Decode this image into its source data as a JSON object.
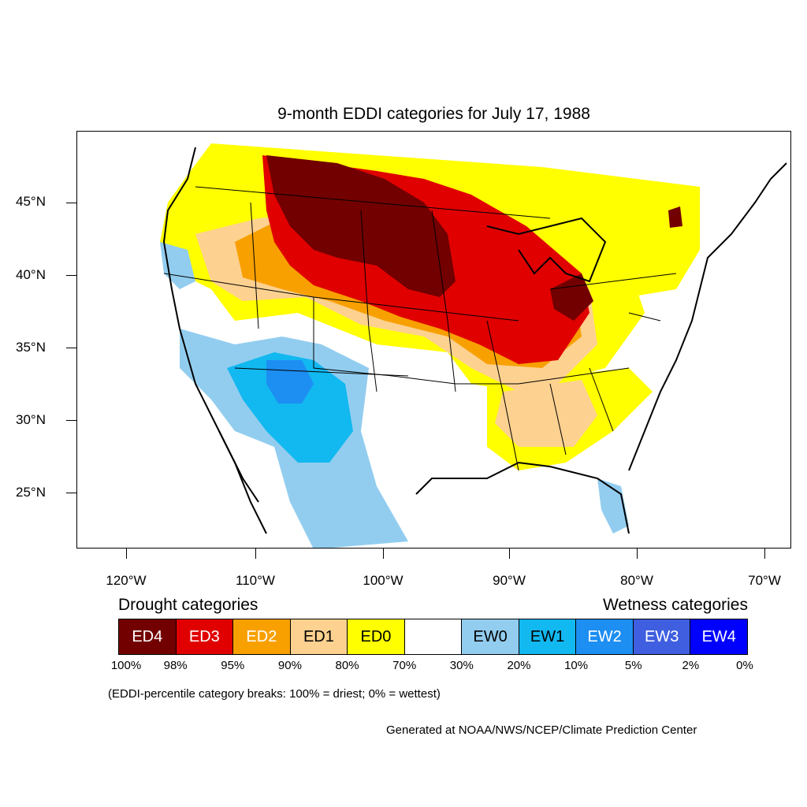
{
  "title": "9-month EDDI categories for July 17, 1988",
  "map": {
    "lat_labels": [
      "45°N",
      "40°N",
      "35°N",
      "30°N",
      "25°N"
    ],
    "lon_labels": [
      "120°W",
      "110°W",
      "100°W",
      "90°W",
      "80°W",
      "70°W"
    ],
    "colors": {
      "ED4": "#720000",
      "ED3": "#e00000",
      "ED2": "#f8a000",
      "ED1": "#fdd190",
      "ED0": "#ffff00",
      "none": "#ffffff",
      "EW0": "#92cdef",
      "EW1": "#12b8f0",
      "EW2": "#1d8ef2",
      "EW3": "#3f5ee0",
      "EW4": "#0000ff"
    }
  },
  "legend": {
    "drought_heading": "Drought categories",
    "wetness_heading": "Wetness categories",
    "categories": [
      {
        "label": "ED4",
        "color": "#720000",
        "text_color": "#ffffff"
      },
      {
        "label": "ED3",
        "color": "#e00000",
        "text_color": "#ffffff"
      },
      {
        "label": "ED2",
        "color": "#f8a000",
        "text_color": "#ffffff"
      },
      {
        "label": "ED1",
        "color": "#fdd190",
        "text_color": "#000000"
      },
      {
        "label": "ED0",
        "color": "#ffff00",
        "text_color": "#000000"
      },
      {
        "label": "",
        "color": "#ffffff",
        "text_color": "#000000"
      },
      {
        "label": "EW0",
        "color": "#92cdef",
        "text_color": "#000000"
      },
      {
        "label": "EW1",
        "color": "#12b8f0",
        "text_color": "#000000"
      },
      {
        "label": "EW2",
        "color": "#1d8ef2",
        "text_color": "#ffffff"
      },
      {
        "label": "EW3",
        "color": "#3f5ee0",
        "text_color": "#ffffff"
      },
      {
        "label": "EW4",
        "color": "#0000ff",
        "text_color": "#ffffff"
      }
    ],
    "percentiles": [
      "100%",
      "98%",
      "95%",
      "90%",
      "80%",
      "70%",
      "30%",
      "20%",
      "10%",
      "5%",
      "2%",
      "0%"
    ]
  },
  "note": "(EDDI-percentile category breaks: 100% = driest; 0% = wettest)",
  "credit": "Generated at NOAA/NWS/NCEP/Climate Prediction Center"
}
